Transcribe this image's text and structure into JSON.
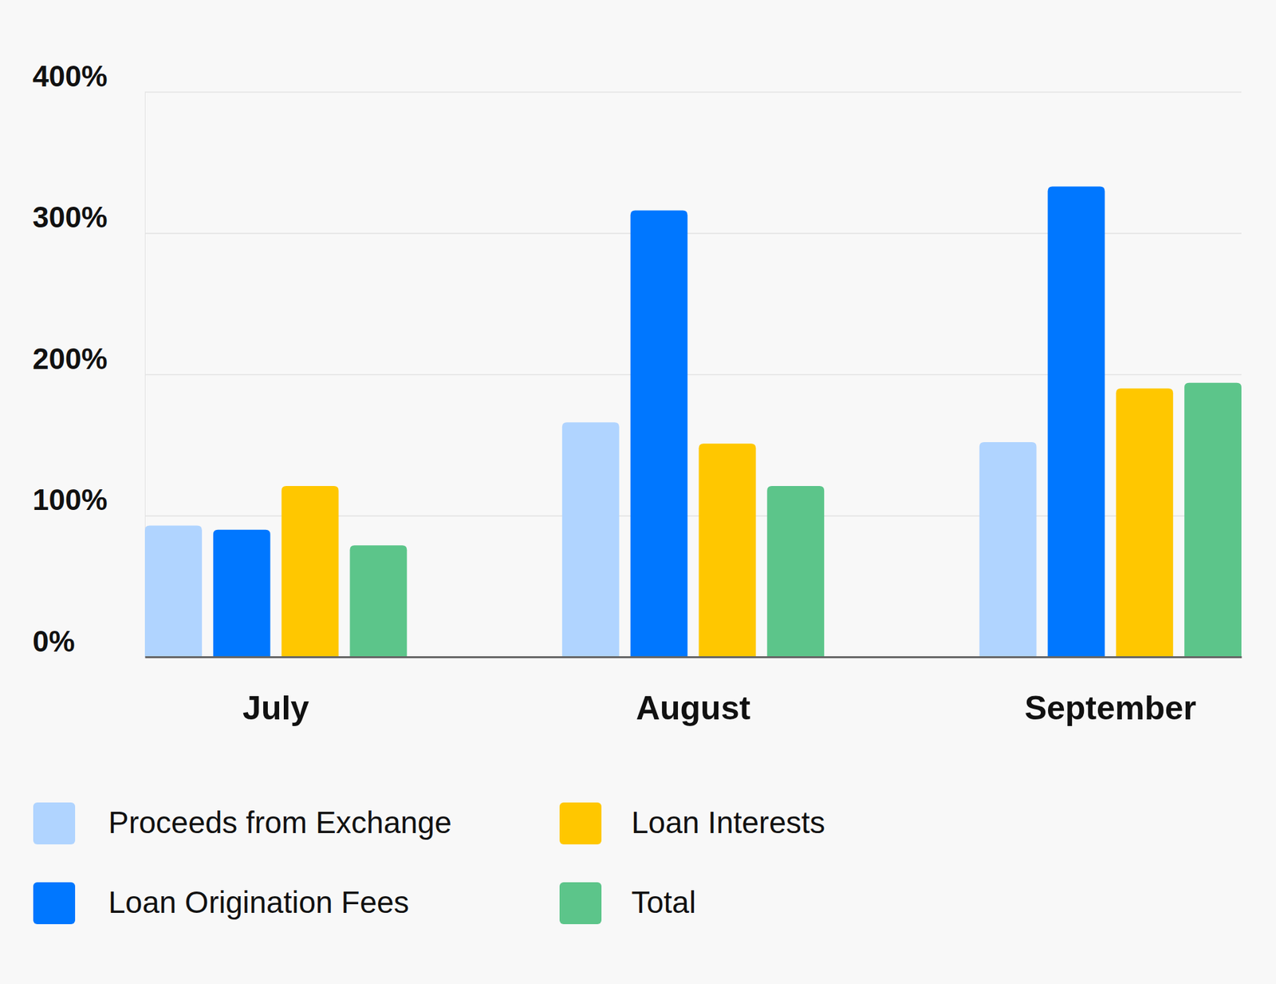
{
  "chart_data": {
    "type": "bar",
    "categories": [
      "July",
      "August",
      "September"
    ],
    "series": [
      {
        "name": "Proceeds from Exchange",
        "color": "#b0d4ff",
        "values": [
          93,
          166,
          152
        ]
      },
      {
        "name": "Loan Origination Fees",
        "color": "#0077ff",
        "values": [
          90,
          316,
          333
        ]
      },
      {
        "name": "Loan Interests",
        "color": "#ffc700",
        "values": [
          121,
          151,
          190
        ]
      },
      {
        "name": "Total",
        "color": "#5cc58a",
        "values": [
          79,
          121,
          194
        ]
      }
    ],
    "ylim": [
      0,
      400
    ],
    "yticks": [
      {
        "value": 0,
        "label": "0%"
      },
      {
        "value": 100,
        "label": "100%"
      },
      {
        "value": 200,
        "label": "200%"
      },
      {
        "value": 300,
        "label": "300%"
      },
      {
        "value": 400,
        "label": "400%"
      }
    ],
    "grid": true,
    "legend": "bottom"
  }
}
